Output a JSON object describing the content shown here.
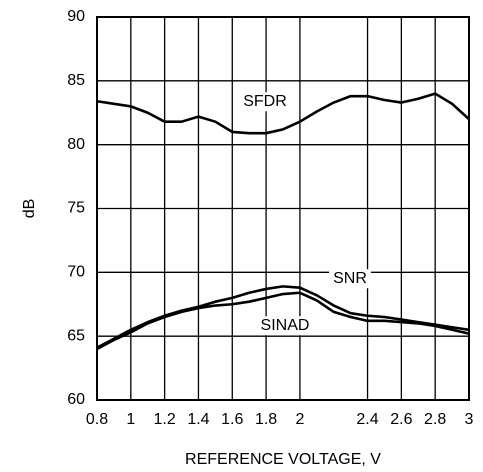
{
  "chart_data": {
    "type": "line",
    "x_label": "REFERENCE VOLTAGE, V",
    "y_label": "dB",
    "x": [
      0.8,
      0.9,
      1.0,
      1.1,
      1.2,
      1.3,
      1.4,
      1.5,
      1.6,
      1.7,
      1.8,
      1.9,
      2.0,
      2.1,
      2.2,
      2.3,
      2.4,
      2.5,
      2.6,
      2.7,
      2.8,
      2.9,
      3.0
    ],
    "series": [
      {
        "name": "SFDR",
        "color": "#000000",
        "values": [
          83.4,
          83.2,
          83.0,
          82.5,
          81.8,
          81.8,
          82.2,
          81.8,
          81.0,
          80.9,
          80.9,
          81.2,
          81.8,
          82.6,
          83.3,
          83.8,
          83.8,
          83.5,
          83.3,
          83.6,
          84.0,
          83.2,
          82.0
        ]
      },
      {
        "name": "SNR",
        "color": "#000000",
        "values": [
          64.1,
          64.8,
          65.5,
          66.1,
          66.6,
          67.0,
          67.3,
          67.7,
          68.0,
          68.4,
          68.7,
          68.9,
          68.8,
          68.2,
          67.4,
          66.8,
          66.6,
          66.5,
          66.3,
          66.1,
          65.9,
          65.7,
          65.5
        ]
      },
      {
        "name": "SINAD",
        "color": "#000000",
        "values": [
          64.0,
          64.7,
          65.3,
          66.0,
          66.5,
          66.9,
          67.2,
          67.4,
          67.5,
          67.7,
          68.0,
          68.3,
          68.4,
          67.8,
          66.9,
          66.5,
          66.2,
          66.2,
          66.1,
          66.0,
          65.8,
          65.5,
          65.2
        ]
      }
    ],
    "xlim": [
      0.8,
      3
    ],
    "xticks": [
      0.8,
      1,
      1.2,
      1.4,
      1.6,
      1.8,
      2,
      2.4,
      2.6,
      2.8,
      3
    ],
    "ylim": [
      60,
      90
    ],
    "yticks": [
      60,
      65,
      70,
      75,
      80,
      85,
      90
    ],
    "grid": true
  }
}
